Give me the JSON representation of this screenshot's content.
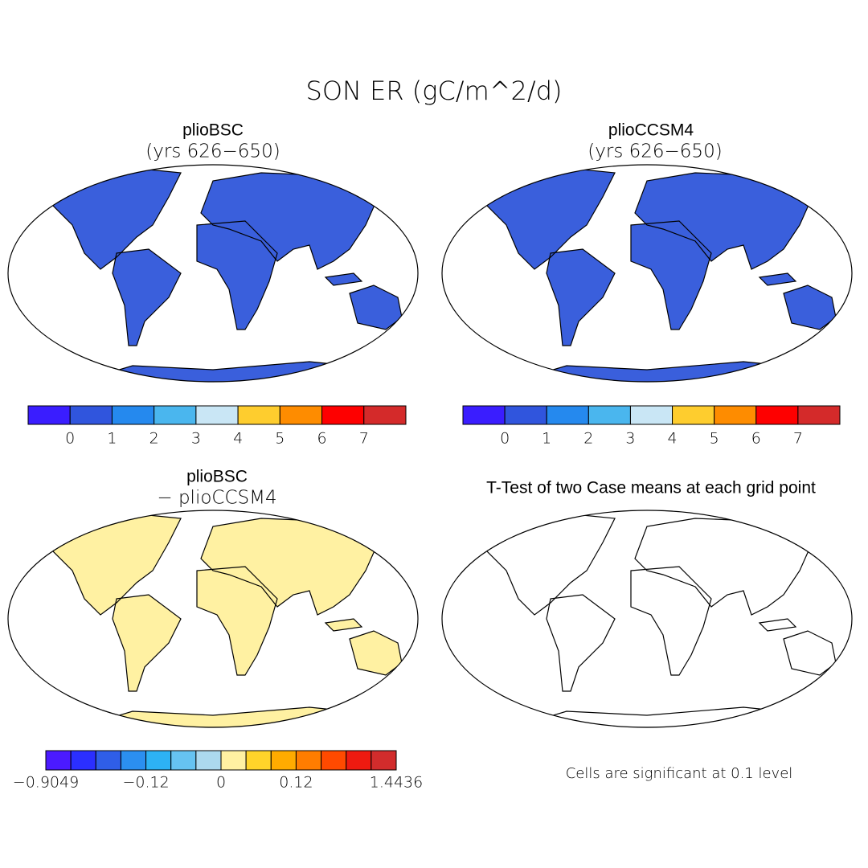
{
  "title": "SON ER (gC/m^2/d)",
  "panels": [
    {
      "title": "plioBSC",
      "subtitle": "(yrs 626−650)"
    },
    {
      "title": "plioCCSM4",
      "subtitle": "(yrs 626−650)"
    },
    {
      "title": "plioBSC",
      "subtitle": "− plioCCSM4"
    },
    {
      "title": "T-Test of two Case means at each grid point"
    }
  ],
  "colorbars": [
    {
      "colors": [
        "#3a1dff",
        "#3055dd",
        "#2589ee",
        "#4ab6ee",
        "#c9e6f5",
        "#fecd2e",
        "#fe8c00",
        "#fe0000",
        "#d42a2a"
      ],
      "ticks": [
        "0",
        "1",
        "2",
        "3",
        "4",
        "5",
        "6",
        "7"
      ]
    },
    {
      "colors": [
        "#3a1dff",
        "#3055dd",
        "#2589ee",
        "#4ab6ee",
        "#c9e6f5",
        "#fecd2e",
        "#fe8c00",
        "#fe0000",
        "#d42a2a"
      ],
      "ticks": [
        "0",
        "1",
        "2",
        "3",
        "4",
        "5",
        "6",
        "7"
      ]
    },
    {
      "colors": [
        "#4b1aff",
        "#2b2fff",
        "#2f5ee8",
        "#2b8ff0",
        "#2db2f4",
        "#66c3f1",
        "#acd9ee",
        "#fff1a2",
        "#ffd42a",
        "#ffab00",
        "#ff7d00",
        "#ff4a00",
        "#ee1a10",
        "#d22c2c"
      ],
      "ticks": [
        "−0.9049",
        "−0.12",
        "0",
        "0.12",
        "1.4436"
      ]
    }
  ],
  "footnote": "Cells are significant at 0.1 level"
}
